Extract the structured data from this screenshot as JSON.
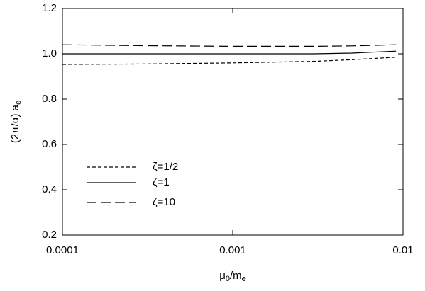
{
  "chart_data": {
    "type": "line",
    "xlabel": [
      {
        "text": "μ",
        "sub": false
      },
      {
        "text": "0",
        "sub": true
      },
      {
        "text": "/m",
        "sub": false
      },
      {
        "text": "e",
        "sub": true
      }
    ],
    "ylabel": [
      {
        "text": "(2π/α) a",
        "sub": false
      },
      {
        "text": "e",
        "sub": true
      }
    ],
    "xscale": "log",
    "x": [
      0.0001,
      0.0003,
      0.001,
      0.003,
      0.005,
      0.0091
    ],
    "series": [
      {
        "name": "ζ=1/2",
        "color": "#000",
        "dash": "5,3",
        "values": [
          0.953,
          0.955,
          0.96,
          0.967,
          0.974,
          0.985
        ]
      },
      {
        "name": "ζ=1",
        "color": "#000",
        "dash": "none",
        "values": [
          1.0,
          1.0,
          1.0,
          1.0,
          1.003,
          1.012
        ]
      },
      {
        "name": "ζ=10",
        "color": "#000",
        "dash": "14,6",
        "values": [
          1.04,
          1.036,
          1.033,
          1.033,
          1.035,
          1.04
        ]
      }
    ],
    "xlim": [
      0.0001,
      0.01
    ],
    "xticks": [
      0.0001,
      0.001,
      0.01
    ],
    "ylim": [
      0.2,
      1.2
    ],
    "yticks": [
      0.2,
      0.4,
      0.6,
      0.8,
      {
        "value": 1,
        "label": "1.0"
      },
      1.2
    ],
    "legend": "lower-left"
  }
}
